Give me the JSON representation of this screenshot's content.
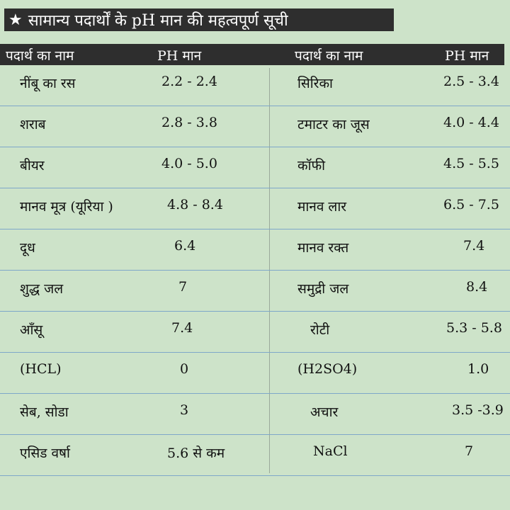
{
  "title": {
    "star": "★",
    "text": "सामान्य पदार्थों के pH मान की महत्वपूर्ण सूची"
  },
  "header": {
    "col1": "पदार्थ का नाम",
    "col2": "PH मान",
    "col3": "पदार्थ का नाम",
    "col4": "PH मान"
  },
  "rows": [
    {
      "name1": "नींबू का रस",
      "ph1": "2.2 - 2.4",
      "name2": "सिरिका",
      "ph2": "2.5 - 3.4"
    },
    {
      "name1": "शराब",
      "ph1": "2.8 - 3.8",
      "name2": "टमाटर का जूस",
      "ph2": "4.0 - 4.4"
    },
    {
      "name1": "बीयर",
      "ph1": "4.0 - 5.0",
      "name2": "कॉफी",
      "ph2": "4.5 - 5.5"
    },
    {
      "name1": "मानव मूत्र (यूरिया )",
      "ph1": "4.8 - 8.4",
      "name2": "मानव लार",
      "ph2": "6.5 - 7.5"
    },
    {
      "name1": "दूध",
      "ph1": "6.4",
      "name2": "मानव रक्त",
      "ph2": "7.4"
    },
    {
      "name1": "शुद्ध जल",
      "ph1": "7",
      "name2": "समुद्री जल",
      "ph2": "8.4"
    },
    {
      "name1": "आँसू",
      "ph1": "7.4",
      "name2": "रोटी",
      "ph2": "5.3 - 5.8"
    },
    {
      "name1": "(HCL)",
      "ph1": "0",
      "name2": "(H2SO4)",
      "ph2": "1.0"
    },
    {
      "name1": "सेब, सोडा",
      "ph1": "3",
      "name2": "अचार",
      "ph2": "3.5 -3.9"
    },
    {
      "name1": "एसिड वर्षा",
      "ph1": "5.6 से कम",
      "name2": "NaCl",
      "ph2": "7"
    }
  ]
}
